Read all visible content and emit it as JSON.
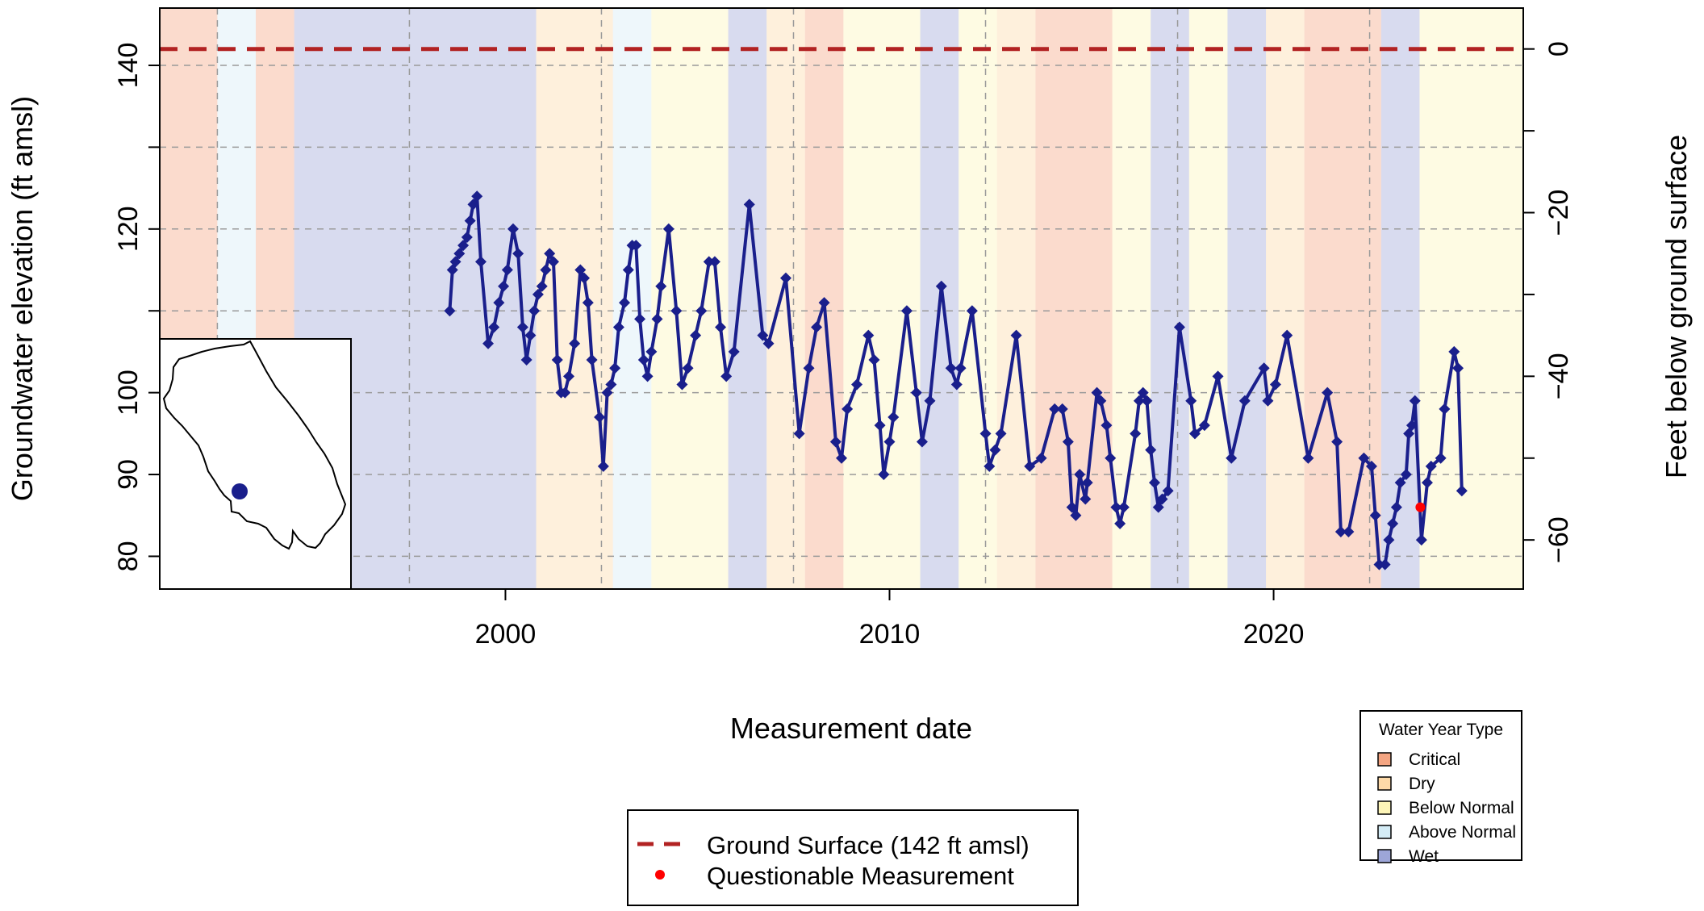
{
  "chart_data": {
    "type": "line",
    "xlabel": "Measurement date",
    "ylabel": "Groundwater elevation (ft amsl)",
    "ylabel_right": "Feet below ground surface",
    "xlim": [
      1991.0,
      2026.5
    ],
    "ylim": [
      76.0,
      147.0
    ],
    "x_ticks": [
      2000,
      2010,
      2020
    ],
    "y_ticks": [
      80,
      90,
      100,
      120,
      140
    ],
    "y_right_ticks": [
      0,
      -20,
      -40,
      -60
    ],
    "ground_surface": 142,
    "grid": true,
    "colors": {
      "line": "#1a1f8c",
      "ground": "#b22222",
      "questionable": "#ff0000",
      "Critical": "#f4a582",
      "Dry": "#fdd9a8",
      "Below Normal": "#fdf5b8",
      "Above Normal": "#d4ecf6",
      "Wet": "#9da6d8"
    },
    "water_year_types": [
      {
        "start": 1991.0,
        "end": 1992.5,
        "type": "Critical"
      },
      {
        "start": 1992.5,
        "end": 1993.5,
        "type": "Above Normal"
      },
      {
        "start": 1993.5,
        "end": 1994.5,
        "type": "Critical"
      },
      {
        "start": 1994.5,
        "end": 2000.8,
        "type": "Wet"
      },
      {
        "start": 2000.8,
        "end": 2002.8,
        "type": "Dry"
      },
      {
        "start": 2002.8,
        "end": 2003.8,
        "type": "Above Normal"
      },
      {
        "start": 2003.8,
        "end": 2005.8,
        "type": "Below Normal"
      },
      {
        "start": 2005.8,
        "end": 2006.8,
        "type": "Wet"
      },
      {
        "start": 2006.8,
        "end": 2007.8,
        "type": "Dry"
      },
      {
        "start": 2007.8,
        "end": 2008.8,
        "type": "Critical"
      },
      {
        "start": 2008.8,
        "end": 2010.8,
        "type": "Below Normal"
      },
      {
        "start": 2010.8,
        "end": 2011.8,
        "type": "Wet"
      },
      {
        "start": 2011.8,
        "end": 2012.8,
        "type": "Below Normal"
      },
      {
        "start": 2012.8,
        "end": 2013.8,
        "type": "Dry"
      },
      {
        "start": 2013.8,
        "end": 2015.8,
        "type": "Critical"
      },
      {
        "start": 2015.8,
        "end": 2016.8,
        "type": "Below Normal"
      },
      {
        "start": 2016.8,
        "end": 2017.8,
        "type": "Wet"
      },
      {
        "start": 2017.8,
        "end": 2018.8,
        "type": "Below Normal"
      },
      {
        "start": 2018.8,
        "end": 2019.8,
        "type": "Wet"
      },
      {
        "start": 2019.8,
        "end": 2020.8,
        "type": "Dry"
      },
      {
        "start": 2020.8,
        "end": 2022.8,
        "type": "Critical"
      },
      {
        "start": 2022.8,
        "end": 2023.8,
        "type": "Wet"
      },
      {
        "start": 2023.8,
        "end": 2026.5,
        "type": "Below Normal"
      }
    ],
    "series": [
      {
        "values": [
          [
            1998.55,
            110
          ],
          [
            1998.62,
            115
          ],
          [
            1998.7,
            116
          ],
          [
            1998.8,
            117
          ],
          [
            1998.9,
            118
          ],
          [
            1999.0,
            119
          ],
          [
            1999.08,
            121
          ],
          [
            1999.16,
            123
          ],
          [
            1999.26,
            124
          ],
          [
            1999.36,
            116
          ],
          [
            1999.55,
            106
          ],
          [
            1999.7,
            108
          ],
          [
            1999.83,
            111
          ],
          [
            1999.95,
            113
          ],
          [
            2000.05,
            115
          ],
          [
            2000.2,
            120
          ],
          [
            2000.33,
            117
          ],
          [
            2000.45,
            108
          ],
          [
            2000.55,
            104
          ],
          [
            2000.65,
            107
          ],
          [
            2000.75,
            110
          ],
          [
            2000.85,
            112
          ],
          [
            2000.95,
            113
          ],
          [
            2001.05,
            115
          ],
          [
            2001.15,
            117
          ],
          [
            2001.25,
            116
          ],
          [
            2001.35,
            104
          ],
          [
            2001.45,
            100
          ],
          [
            2001.55,
            100
          ],
          [
            2001.65,
            102
          ],
          [
            2001.8,
            106
          ],
          [
            2001.95,
            115
          ],
          [
            2002.05,
            114
          ],
          [
            2002.15,
            111
          ],
          [
            2002.25,
            104
          ],
          [
            2002.45,
            97
          ],
          [
            2002.55,
            91
          ],
          [
            2002.65,
            100
          ],
          [
            2002.75,
            101
          ],
          [
            2002.85,
            103
          ],
          [
            2002.95,
            108
          ],
          [
            2003.1,
            111
          ],
          [
            2003.2,
            115
          ],
          [
            2003.3,
            118
          ],
          [
            2003.4,
            118
          ],
          [
            2003.5,
            109
          ],
          [
            2003.6,
            104
          ],
          [
            2003.7,
            102
          ],
          [
            2003.8,
            105
          ],
          [
            2003.95,
            109
          ],
          [
            2004.05,
            113
          ],
          [
            2004.25,
            120
          ],
          [
            2004.45,
            110
          ],
          [
            2004.6,
            101
          ],
          [
            2004.75,
            103
          ],
          [
            2004.95,
            107
          ],
          [
            2005.1,
            110
          ],
          [
            2005.3,
            116
          ],
          [
            2005.45,
            116
          ],
          [
            2005.6,
            108
          ],
          [
            2005.75,
            102
          ],
          [
            2005.95,
            105
          ],
          [
            2006.35,
            123
          ],
          [
            2006.7,
            107
          ],
          [
            2006.85,
            106
          ],
          [
            2007.3,
            114
          ],
          [
            2007.65,
            95
          ],
          [
            2007.9,
            103
          ],
          [
            2008.1,
            108
          ],
          [
            2008.3,
            111
          ],
          [
            2008.6,
            94
          ],
          [
            2008.75,
            92
          ],
          [
            2008.9,
            98
          ],
          [
            2009.15,
            101
          ],
          [
            2009.45,
            107
          ],
          [
            2009.6,
            104
          ],
          [
            2009.75,
            96
          ],
          [
            2009.85,
            90
          ],
          [
            2010.0,
            94
          ],
          [
            2010.1,
            97
          ],
          [
            2010.45,
            110
          ],
          [
            2010.7,
            100
          ],
          [
            2010.85,
            94
          ],
          [
            2011.05,
            99
          ],
          [
            2011.35,
            113
          ],
          [
            2011.6,
            103
          ],
          [
            2011.75,
            101
          ],
          [
            2011.85,
            103
          ],
          [
            2012.15,
            110
          ],
          [
            2012.5,
            95
          ],
          [
            2012.6,
            91
          ],
          [
            2012.75,
            93
          ],
          [
            2012.9,
            95
          ],
          [
            2013.3,
            107
          ],
          [
            2013.65,
            91
          ],
          [
            2013.95,
            92
          ],
          [
            2014.3,
            98
          ],
          [
            2014.5,
            98
          ],
          [
            2014.65,
            94
          ],
          [
            2014.75,
            86
          ],
          [
            2014.85,
            85
          ],
          [
            2014.95,
            90
          ],
          [
            2015.1,
            87
          ],
          [
            2015.15,
            89
          ],
          [
            2015.4,
            100
          ],
          [
            2015.5,
            99
          ],
          [
            2015.65,
            96
          ],
          [
            2015.75,
            92
          ],
          [
            2015.9,
            86
          ],
          [
            2016.0,
            84
          ],
          [
            2016.1,
            86
          ],
          [
            2016.4,
            95
          ],
          [
            2016.5,
            99
          ],
          [
            2016.6,
            100
          ],
          [
            2016.7,
            99
          ],
          [
            2016.8,
            93
          ],
          [
            2016.9,
            89
          ],
          [
            2017.0,
            86
          ],
          [
            2017.1,
            87
          ],
          [
            2017.25,
            88
          ],
          [
            2017.55,
            108
          ],
          [
            2017.85,
            99
          ],
          [
            2017.95,
            95
          ],
          [
            2018.2,
            96
          ],
          [
            2018.55,
            102
          ],
          [
            2018.9,
            92
          ],
          [
            2019.25,
            99
          ],
          [
            2019.75,
            103
          ],
          [
            2019.85,
            99
          ],
          [
            2020.05,
            101
          ],
          [
            2020.35,
            107
          ],
          [
            2020.9,
            92
          ],
          [
            2021.4,
            100
          ],
          [
            2021.65,
            94
          ],
          [
            2021.75,
            83
          ],
          [
            2021.95,
            83
          ],
          [
            2022.35,
            92
          ],
          [
            2022.55,
            91
          ],
          [
            2022.65,
            85
          ],
          [
            2022.75,
            79
          ],
          [
            2022.9,
            79
          ],
          [
            2023.0,
            82
          ],
          [
            2023.1,
            84
          ],
          [
            2023.2,
            86
          ],
          [
            2023.3,
            89
          ],
          [
            2023.45,
            90
          ],
          [
            2023.52,
            95
          ],
          [
            2023.6,
            96
          ],
          [
            2023.68,
            99
          ],
          [
            2023.85,
            82
          ],
          [
            2024.0,
            89
          ],
          [
            2024.1,
            91
          ],
          [
            2024.35,
            92
          ],
          [
            2024.45,
            98
          ],
          [
            2024.7,
            105
          ],
          [
            2024.8,
            103
          ],
          [
            2024.9,
            88
          ]
        ]
      }
    ],
    "questionable": [
      [
        2023.82,
        86
      ]
    ],
    "legend_main": {
      "ground_label": "Ground Surface (142 ft amsl)",
      "questionable_label": "Questionable Measurement"
    },
    "legend_wyt": {
      "title": "Water Year Type",
      "items": [
        "Critical",
        "Dry",
        "Below Normal",
        "Above Normal",
        "Wet"
      ]
    }
  }
}
